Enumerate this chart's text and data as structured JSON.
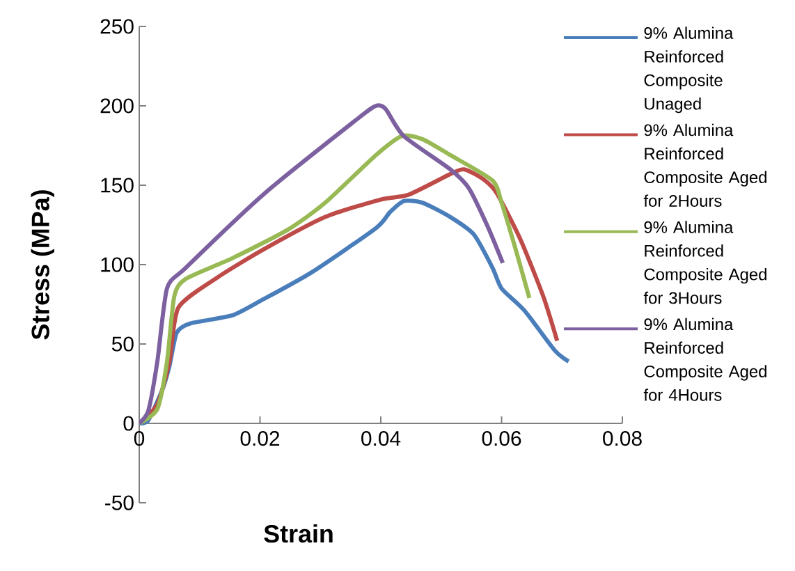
{
  "chart_data": {
    "type": "line",
    "xlabel": "Strain",
    "ylabel": "Stress (MPa)",
    "xlim": [
      0,
      0.08
    ],
    "xticks": [
      0,
      0.02,
      0.04,
      0.06,
      0.08
    ],
    "ylim": [
      -50,
      250
    ],
    "yticks": [
      -50,
      0,
      50,
      100,
      150,
      200,
      250
    ],
    "grid": false,
    "legend": "right",
    "marker": "none",
    "line_style": "solid",
    "series": [
      {
        "name": "9% Alumina Reinforced Composite Unaged",
        "color": "#4a7ebb",
        "x": [
          0,
          0.0015,
          0.0038,
          0.005,
          0.0062,
          0.0085,
          0.0154,
          0.02,
          0.0285,
          0.0392,
          0.0415,
          0.0438,
          0.0469,
          0.0515,
          0.0554,
          0.0585,
          0.06,
          0.0638,
          0.0688,
          0.0711
        ],
        "values": [
          0,
          2,
          21,
          36,
          57,
          63,
          68,
          77,
          95,
          123,
          133,
          140,
          139,
          130,
          119,
          98,
          85,
          71,
          46,
          39
        ]
      },
      {
        "name": "9% Alumina Reinforced Composite Aged for 2Hours",
        "color": "#be4b48",
        "x": [
          0,
          0.003,
          0.005,
          0.0065,
          0.013,
          0.0208,
          0.0308,
          0.04,
          0.0446,
          0.0515,
          0.0538,
          0.0569,
          0.0592,
          0.0631,
          0.0669,
          0.0692
        ],
        "values": [
          0,
          12,
          39,
          73,
          92,
          110,
          130,
          141,
          144,
          157,
          160,
          154,
          145,
          116,
          80,
          52
        ]
      },
      {
        "name": "9% Alumina Reinforced Composite Aged for 3Hours",
        "color": "#98b954",
        "x": [
          0,
          0.003,
          0.0046,
          0.0058,
          0.0077,
          0.0154,
          0.0246,
          0.0308,
          0.0392,
          0.0435,
          0.0469,
          0.0515,
          0.0585,
          0.06,
          0.0623,
          0.0646
        ],
        "values": [
          0,
          9,
          39,
          80,
          91,
          104,
          122,
          139,
          169,
          181,
          179,
          169,
          153,
          139,
          110,
          79
        ]
      },
      {
        "name": "9% Alumina Reinforced Composite Aged for 4Hours",
        "color": "#7d60a0",
        "x": [
          0,
          0.0015,
          0.003,
          0.0046,
          0.0077,
          0.0208,
          0.0362,
          0.0392,
          0.0408,
          0.0438,
          0.0515,
          0.0546,
          0.0577,
          0.0602
        ],
        "values": [
          0,
          8,
          39,
          85,
          98,
          145,
          192,
          200,
          198,
          181,
          160,
          148,
          124,
          101
        ]
      }
    ]
  }
}
